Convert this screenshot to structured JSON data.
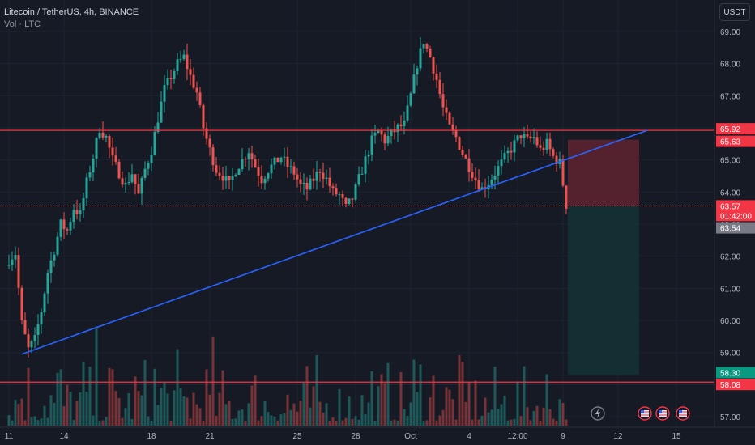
{
  "header": {
    "symbol_line": "Litecoin / TetherUS, 4h, BINANCE",
    "volume_line": "Vol · LTC",
    "currency_button": "USDT"
  },
  "colors": {
    "background": "#161a25",
    "grid": "#1f2330",
    "up": "#26a69a",
    "down": "#ef5350",
    "trendline": "#2962ff",
    "horizontal_line": "#f23645",
    "axis_text": "#b2b5be",
    "stop_zone": "#5a2330",
    "target_zone": "#133236"
  },
  "chart_data": {
    "type": "candlestick",
    "title": "Litecoin / TetherUS, 4h, BINANCE",
    "xlabel": "",
    "ylabel": "",
    "ylim": [
      56.7,
      69.3
    ],
    "y_ticks": [
      "57.00",
      "58.00",
      "59.00",
      "60.00",
      "61.00",
      "62.00",
      "63.00",
      "64.00",
      "65.00",
      "66.00",
      "67.00",
      "68.00",
      "69.00"
    ],
    "x_ticks": [
      "11",
      "14",
      "18",
      "21",
      "25",
      "28",
      "Oct",
      "4",
      "12:00",
      "9",
      "12",
      "15"
    ],
    "grid": true,
    "price_path": [
      [
        0,
        61.9
      ],
      [
        2,
        62.1
      ],
      [
        4,
        59.9
      ],
      [
        6,
        59.1
      ],
      [
        8,
        59.4
      ],
      [
        10,
        60.3
      ],
      [
        12,
        61.5
      ],
      [
        14,
        62.2
      ],
      [
        16,
        63.0
      ],
      [
        18,
        62.8
      ],
      [
        20,
        63.5
      ],
      [
        22,
        63.3
      ],
      [
        24,
        64.3
      ],
      [
        26,
        65.1
      ],
      [
        28,
        66.0
      ],
      [
        30,
        65.7
      ],
      [
        32,
        65.0
      ],
      [
        34,
        64.6
      ],
      [
        36,
        64.2
      ],
      [
        38,
        64.6
      ],
      [
        40,
        63.9
      ],
      [
        42,
        64.7
      ],
      [
        44,
        65.3
      ],
      [
        46,
        66.3
      ],
      [
        48,
        67.2
      ],
      [
        50,
        67.6
      ],
      [
        52,
        68.0
      ],
      [
        54,
        68.2
      ],
      [
        56,
        67.6
      ],
      [
        58,
        67.1
      ],
      [
        60,
        66.0
      ],
      [
        62,
        65.3
      ],
      [
        64,
        64.7
      ],
      [
        66,
        64.5
      ],
      [
        68,
        64.2
      ],
      [
        70,
        64.7
      ],
      [
        72,
        65.0
      ],
      [
        74,
        65.3
      ],
      [
        76,
        64.8
      ],
      [
        78,
        64.4
      ],
      [
        80,
        64.7
      ],
      [
        82,
        64.9
      ],
      [
        84,
        65.1
      ],
      [
        86,
        64.8
      ],
      [
        88,
        64.6
      ],
      [
        90,
        64.2
      ],
      [
        92,
        64.1
      ],
      [
        94,
        64.4
      ],
      [
        96,
        64.7
      ],
      [
        98,
        64.4
      ],
      [
        100,
        64.0
      ],
      [
        102,
        63.9
      ],
      [
        104,
        63.5
      ],
      [
        106,
        63.8
      ],
      [
        108,
        64.4
      ],
      [
        110,
        65.0
      ],
      [
        112,
        65.6
      ],
      [
        114,
        65.9
      ],
      [
        116,
        65.6
      ],
      [
        118,
        65.8
      ],
      [
        120,
        66.0
      ],
      [
        122,
        66.1
      ],
      [
        124,
        67.0
      ],
      [
        126,
        68.0
      ],
      [
        128,
        68.7
      ],
      [
        130,
        68.2
      ],
      [
        132,
        67.5
      ],
      [
        134,
        66.6
      ],
      [
        136,
        66.0
      ],
      [
        138,
        65.7
      ],
      [
        140,
        65.2
      ],
      [
        142,
        64.8
      ],
      [
        144,
        64.4
      ],
      [
        146,
        64.1
      ],
      [
        148,
        64.3
      ],
      [
        150,
        64.6
      ],
      [
        152,
        64.9
      ],
      [
        154,
        65.2
      ],
      [
        156,
        65.5
      ],
      [
        158,
        65.8
      ],
      [
        160,
        65.6
      ],
      [
        162,
        65.7
      ],
      [
        164,
        65.3
      ],
      [
        166,
        65.5
      ],
      [
        168,
        65.1
      ],
      [
        170,
        64.9
      ],
      [
        172,
        63.6
      ]
    ],
    "last_candle_index": 172,
    "x_tick_positions": [
      [
        0,
        "11"
      ],
      [
        17,
        "14"
      ],
      [
        44,
        "18"
      ],
      [
        62,
        "21"
      ],
      [
        89,
        "25"
      ],
      [
        107,
        "28"
      ],
      [
        124,
        "Oct"
      ],
      [
        142,
        "4"
      ],
      [
        157,
        "12:00"
      ],
      [
        171,
        "9"
      ],
      [
        188,
        "12"
      ],
      [
        206,
        "15"
      ]
    ],
    "horizontal_lines": [
      65.92,
      58.08
    ],
    "trendline": {
      "from": [
        4,
        58.95
      ],
      "to": [
        197,
        65.92
      ]
    },
    "position": {
      "start": 172,
      "end": 194,
      "entry": 63.57,
      "stop": 65.63,
      "target": 58.3
    },
    "price_labels": [
      {
        "text": "65.92",
        "value": 65.92,
        "kind": "red"
      },
      {
        "text": "65.63",
        "value": 65.63,
        "kind": "red"
      },
      {
        "text": "63.57",
        "sub": "01:42:00",
        "value": 63.57,
        "kind": "red"
      },
      {
        "text": "63.54",
        "value": 63.54,
        "kind": "gray"
      },
      {
        "text": "58.30",
        "value": 58.3,
        "kind": "green"
      },
      {
        "text": "58.08",
        "value": 58.08,
        "kind": "red"
      }
    ],
    "event_markers": [
      "flash-event-icon",
      "us-flag-icon",
      "us-flag-icon",
      "us-flag-icon"
    ]
  }
}
